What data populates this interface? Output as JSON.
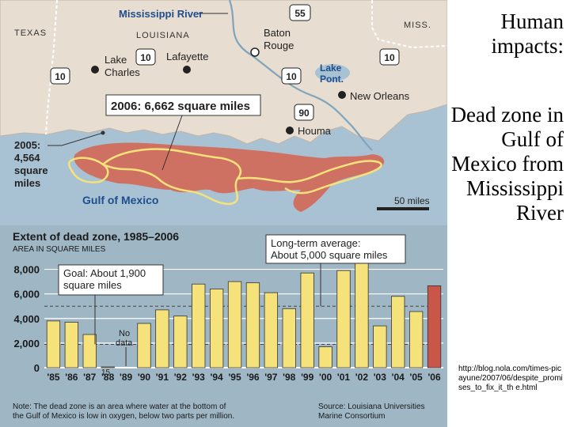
{
  "slide": {
    "title": "Human impacts:",
    "body": "Dead zone in Gulf of Mexico from Mississippi River",
    "url": "http://blog.nola.com/times-picayune/2007/06/despite_promises_to_fix_it_th e.html"
  },
  "map": {
    "labels": {
      "river": "Mississippi River",
      "texas": "TEXAS",
      "louisiana": "LOUISIANA",
      "miss": "MISS.",
      "baton_rouge": "Baton Rouge",
      "lake_charles": "Lake Charles",
      "lafayette": "Lafayette",
      "lake_pont": "Lake Pont.",
      "new_orleans": "New Orleans",
      "houma": "Houma",
      "gulf": "Gulf of Mexico",
      "scale": "50 miles"
    },
    "highways": [
      "55",
      "10",
      "10",
      "10",
      "10",
      "90"
    ],
    "callout_2006": "2006: 6,662 square miles",
    "callout_2005": [
      "2005:",
      "4,564",
      "square",
      "miles"
    ]
  },
  "chart_data": {
    "type": "bar",
    "title": "Extent of dead zone, 1985–2006",
    "subtitle": "AREA IN SQUARE MILES",
    "categories": [
      "'85",
      "'86",
      "'87",
      "'88",
      "'89",
      "'90",
      "'91",
      "'92",
      "'93",
      "'94",
      "'95",
      "'96",
      "'97",
      "'98",
      "'99",
      "'00",
      "'01",
      "'02",
      "'03",
      "'04",
      "'05",
      "'06"
    ],
    "values": [
      3800,
      3700,
      2700,
      15,
      null,
      3600,
      4700,
      4200,
      6800,
      6400,
      7000,
      6900,
      6100,
      4800,
      7700,
      1700,
      7900,
      8500,
      3400,
      5800,
      4564,
      6662
    ],
    "ylim": [
      0,
      9000
    ],
    "y_ticks": [
      "8,000",
      "6,000",
      "4,000",
      "2,000",
      "0"
    ],
    "y_tick_values": [
      8000,
      6000,
      4000,
      2000,
      0
    ],
    "goal": 1900,
    "long_term_average": 5000,
    "annotations": {
      "goal": [
        "Goal: About 1,900",
        "square miles"
      ],
      "average": [
        "Long-term average:",
        "About 5,000 square miles"
      ],
      "no_data": [
        "No",
        "data"
      ],
      "value_88": "15"
    },
    "note": [
      "Note: The dead zone is an area where water at the bottom of",
      "the Gulf of Mexico is low in oxygen, below two parts per million."
    ],
    "source": [
      "Source: Louisiana Universities",
      "Marine Consortium"
    ],
    "colors": {
      "bar": "#f6e27a",
      "bar_highlight": "#c8574a",
      "background": "#9fb6c4"
    }
  }
}
